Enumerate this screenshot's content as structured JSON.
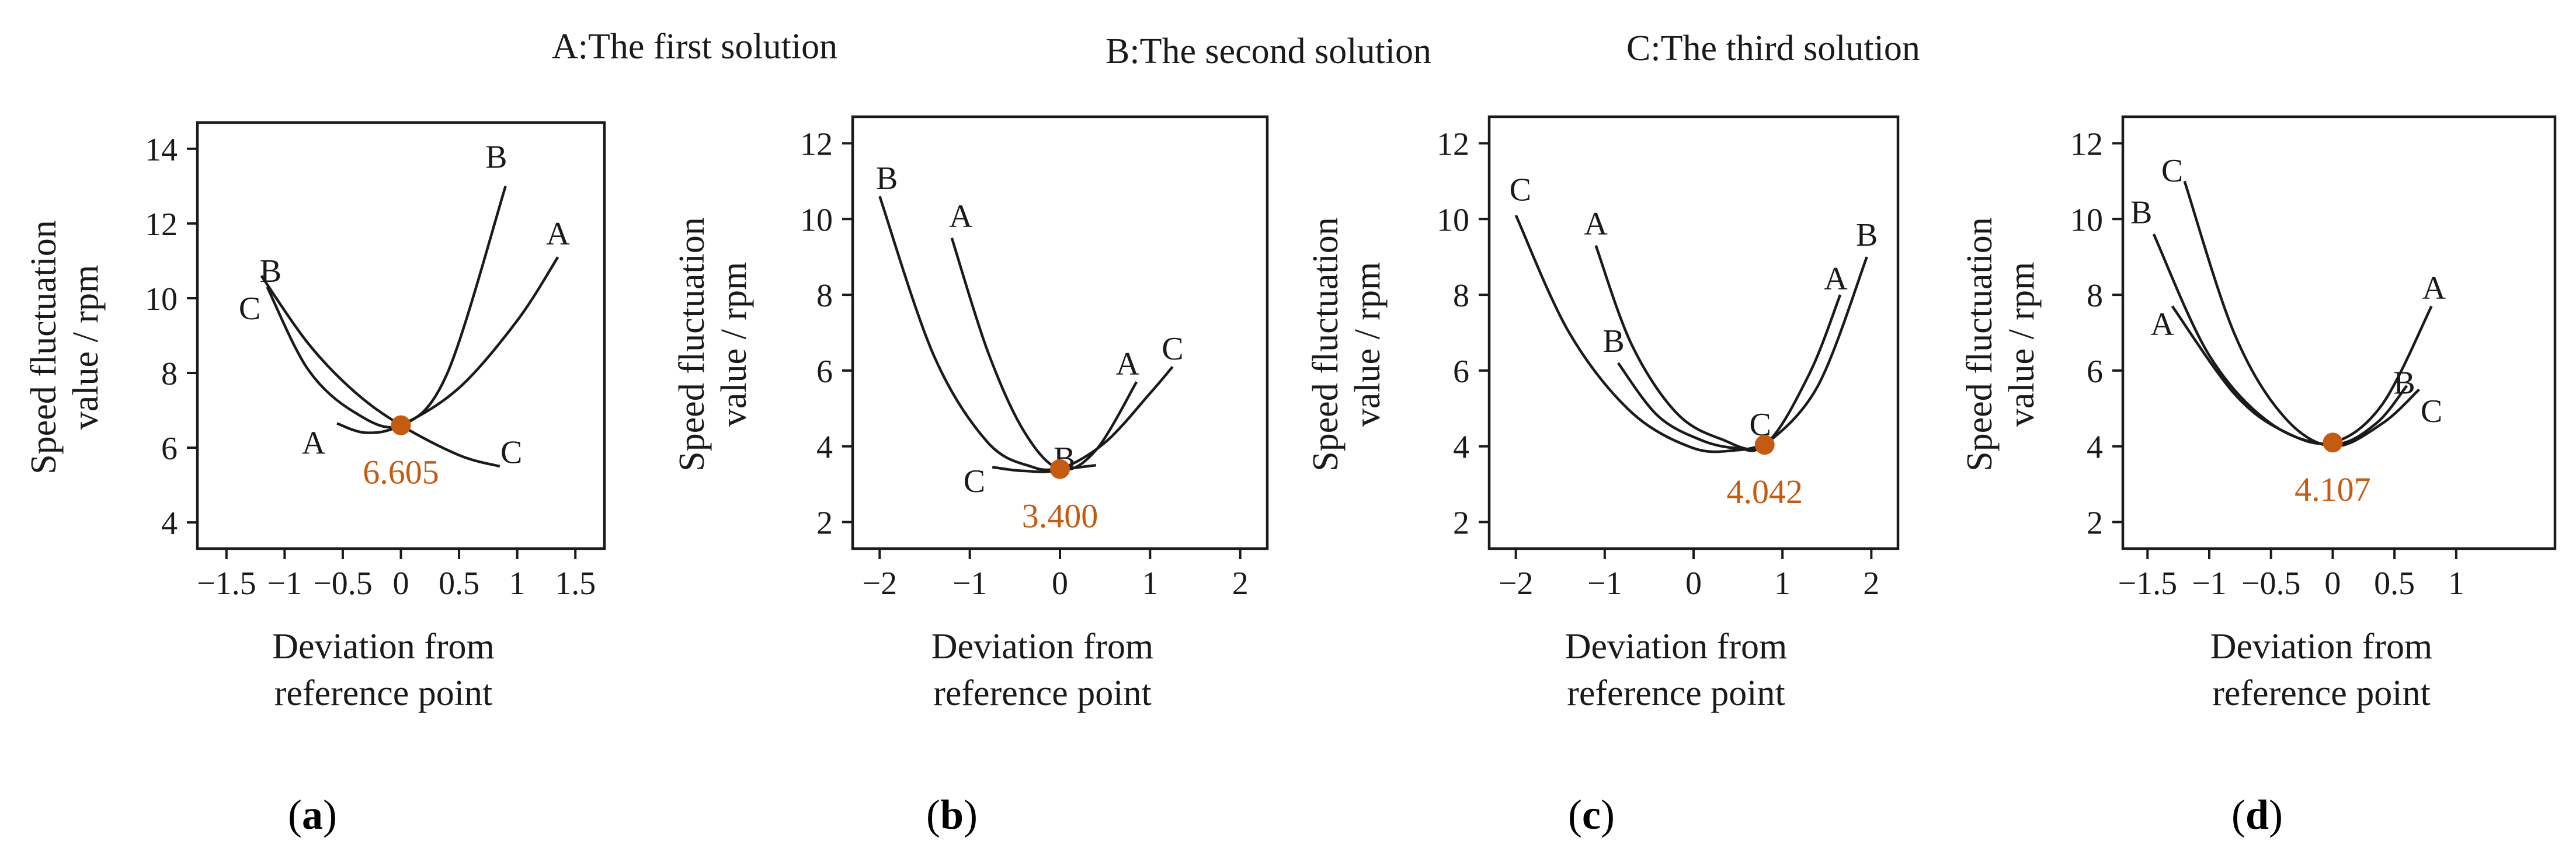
{
  "legend": {
    "a": "A:The first solution",
    "b": "B:The second solution",
    "c": "C:The third solution"
  },
  "colors": {
    "marker": "#c55a11",
    "line": "#1a1a1a"
  },
  "chart_data": [
    {
      "type": "line",
      "caption_letter": "a",
      "xlabel": [
        "Deviation from",
        "reference point"
      ],
      "ylabel": [
        "Speed fluctuation",
        "value / rpm"
      ],
      "xlim": [
        -1.75,
        1.75
      ],
      "ylim": [
        3.3,
        14.7
      ],
      "xticks": [
        -1.5,
        -1,
        -0.5,
        0,
        0.5,
        1,
        1.5
      ],
      "xtick_labels": [
        "−1.5",
        "−1",
        "−0.5",
        "0",
        "0.5",
        "1",
        "1.5"
      ],
      "yticks": [
        4,
        6,
        8,
        10,
        12,
        14
      ],
      "ytick_labels": [
        "4",
        "6",
        "8",
        "10",
        "12",
        "14"
      ],
      "minimum": {
        "x": 0,
        "y": 6.6,
        "label": "6.605"
      },
      "series": [
        {
          "name": "A",
          "x": [
            -0.55,
            -0.3,
            0,
            0.5,
            1.0,
            1.35
          ],
          "y": [
            6.65,
            6.4,
            6.6,
            7.6,
            9.4,
            11.1
          ],
          "label_at": [
            -0.75,
            6.15
          ]
        },
        {
          "name": "B",
          "x": [
            -1.15,
            -0.8,
            -0.4,
            0,
            0.4,
            0.9
          ],
          "y": [
            10.3,
            8.1,
            6.95,
            6.6,
            8.0,
            13.0
          ],
          "label_at": [
            0.82,
            13.8
          ]
        },
        {
          "name": "C",
          "x": [
            -1.2,
            -0.8,
            -0.4,
            0,
            0.5,
            0.85
          ],
          "y": [
            10.6,
            8.8,
            7.5,
            6.6,
            5.8,
            5.5
          ],
          "label_at": [
            0.95,
            5.9
          ]
        }
      ],
      "extra_labels": [
        {
          "text": "B",
          "at": [
            -1.12,
            10.75
          ]
        },
        {
          "text": "C",
          "at": [
            -1.3,
            9.75
          ]
        },
        {
          "text": "A",
          "at": [
            1.35,
            11.75
          ]
        }
      ]
    },
    {
      "type": "line",
      "caption_letter": "b",
      "xlabel": [
        "Deviation from",
        "reference point"
      ],
      "ylabel": [
        "Speed fluctuation",
        "value / rpm"
      ],
      "xlim": [
        -2.3,
        2.3
      ],
      "ylim": [
        1.3,
        12.7
      ],
      "xticks": [
        -2,
        -1,
        0,
        1,
        2
      ],
      "xtick_labels": [
        "−2",
        "−1",
        "0",
        "1",
        "2"
      ],
      "yticks": [
        2,
        4,
        6,
        8,
        10,
        12
      ],
      "ytick_labels": [
        "2",
        "4",
        "6",
        "8",
        "10",
        "12"
      ],
      "minimum": {
        "x": 0,
        "y": 3.4,
        "label": "3.400"
      },
      "series": [
        {
          "name": "A",
          "x": [
            -1.2,
            -0.8,
            -0.4,
            0,
            0.4,
            0.85
          ],
          "y": [
            9.5,
            6.5,
            4.4,
            3.4,
            3.9,
            5.7
          ],
          "label_at": [
            0.75,
            6.2
          ]
        },
        {
          "name": "B",
          "x": [
            -2.0,
            -1.4,
            -0.8,
            -0.3,
            0,
            0.4
          ],
          "y": [
            10.6,
            6.4,
            4.1,
            3.45,
            3.4,
            3.5
          ],
          "label_at": [
            0.05,
            3.7
          ]
        },
        {
          "name": "C",
          "x": [
            -0.75,
            -0.4,
            0,
            0.5,
            1.0,
            1.25
          ],
          "y": [
            3.45,
            3.35,
            3.4,
            4.1,
            5.4,
            6.1
          ],
          "label_at": [
            1.25,
            6.6
          ]
        }
      ],
      "extra_labels": [
        {
          "text": "B",
          "at": [
            -1.92,
            11.1
          ]
        },
        {
          "text": "A",
          "at": [
            -1.1,
            10.1
          ]
        },
        {
          "text": "C",
          "at": [
            -0.95,
            3.1
          ]
        }
      ]
    },
    {
      "type": "line",
      "caption_letter": "c",
      "xlabel": [
        "Deviation from",
        "reference point"
      ],
      "ylabel": [
        "Speed fluctuation",
        "value / rpm"
      ],
      "xlim": [
        -2.3,
        2.3
      ],
      "ylim": [
        1.3,
        12.7
      ],
      "xticks": [
        -2,
        -1,
        0,
        1,
        2
      ],
      "xtick_labels": [
        "−2",
        "−1",
        "0",
        "1",
        "2"
      ],
      "yticks": [
        2,
        4,
        6,
        8,
        10,
        12
      ],
      "ytick_labels": [
        "2",
        "4",
        "6",
        "8",
        "10",
        "12"
      ],
      "minimum": {
        "x": 0.8,
        "y": 4.04,
        "label": "4.042"
      },
      "series": [
        {
          "name": "A",
          "x": [
            -1.1,
            -0.7,
            -0.2,
            0.3,
            0.8,
            1.3,
            1.65
          ],
          "y": [
            9.3,
            6.7,
            4.9,
            4.2,
            4.04,
            5.9,
            8.0
          ],
          "label_at": [
            1.6,
            8.45
          ]
        },
        {
          "name": "B",
          "x": [
            -0.85,
            -0.4,
            0.1,
            0.5,
            0.8,
            1.4,
            1.95
          ],
          "y": [
            6.2,
            4.8,
            4.15,
            3.95,
            4.04,
            5.6,
            9.0
          ],
          "label_at": [
            1.95,
            9.6
          ]
        },
        {
          "name": "C",
          "x": [
            -2.0,
            -1.4,
            -0.7,
            0,
            0.5,
            0.8
          ],
          "y": [
            10.1,
            7.0,
            4.9,
            3.95,
            3.9,
            4.04
          ],
          "label_at": [
            0.75,
            4.6
          ]
        }
      ],
      "extra_labels": [
        {
          "text": "C",
          "at": [
            -1.95,
            10.8
          ]
        },
        {
          "text": "A",
          "at": [
            -1.1,
            9.9
          ]
        },
        {
          "text": "B",
          "at": [
            -0.9,
            6.8
          ]
        }
      ]
    },
    {
      "type": "line",
      "caption_letter": "d",
      "xlabel": [
        "Deviation from",
        "reference point"
      ],
      "ylabel": [
        "Speed fluctuation",
        "value / rpm"
      ],
      "xlim": [
        -1.7,
        1.8
      ],
      "ylim": [
        1.3,
        12.7
      ],
      "xticks": [
        -1.5,
        -1,
        -0.5,
        0,
        0.5,
        1
      ],
      "xtick_labels": [
        "−1.5",
        "−1",
        "−0.5",
        "0",
        "0.5",
        "1"
      ],
      "yticks": [
        2,
        4,
        6,
        8,
        10,
        12
      ],
      "ytick_labels": [
        "2",
        "4",
        "6",
        "8",
        "10",
        "12"
      ],
      "minimum": {
        "x": 0,
        "y": 4.1,
        "label": "4.107"
      },
      "series": [
        {
          "name": "A",
          "x": [
            -1.3,
            -0.8,
            -0.4,
            0,
            0.4,
            0.8
          ],
          "y": [
            7.7,
            5.4,
            4.4,
            4.1,
            5.1,
            7.7
          ],
          "label_at": [
            0.82,
            8.2
          ]
        },
        {
          "name": "B",
          "x": [
            -1.45,
            -1.0,
            -0.5,
            0,
            0.35,
            0.6
          ],
          "y": [
            9.6,
            6.4,
            4.6,
            4.05,
            4.6,
            5.6
          ],
          "label_at": [
            0.58,
            5.7
          ]
        },
        {
          "name": "C",
          "x": [
            -1.2,
            -0.8,
            -0.4,
            0,
            0.4,
            0.7
          ],
          "y": [
            11.0,
            7.0,
            4.8,
            4.0,
            4.6,
            5.5
          ],
          "label_at": [
            0.8,
            4.95
          ]
        }
      ],
      "extra_labels": [
        {
          "text": "C",
          "at": [
            -1.3,
            11.3
          ]
        },
        {
          "text": "B",
          "at": [
            -1.55,
            10.2
          ]
        },
        {
          "text": "A",
          "at": [
            -1.38,
            7.25
          ]
        }
      ]
    }
  ]
}
